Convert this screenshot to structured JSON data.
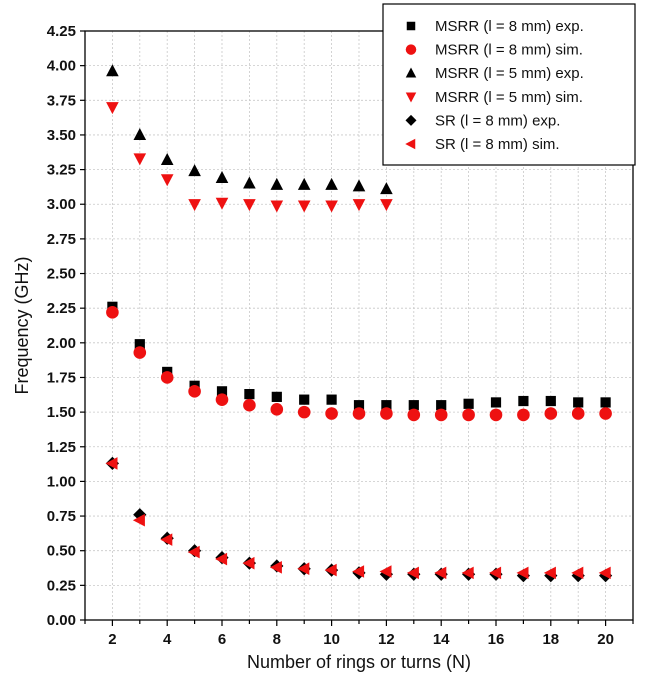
{
  "chart_data": {
    "type": "scatter",
    "xlabel": "Number of rings or turns (N)",
    "ylabel": "Frequency (GHz)",
    "xlim": [
      1,
      21
    ],
    "ylim": [
      0,
      4.25
    ],
    "xticks": [
      2,
      4,
      6,
      8,
      10,
      12,
      14,
      16,
      18,
      20
    ],
    "yticks": [
      0.0,
      0.25,
      0.5,
      0.75,
      1.0,
      1.25,
      1.5,
      1.75,
      2.0,
      2.25,
      2.5,
      2.75,
      3.0,
      3.25,
      3.5,
      3.75,
      4.0,
      4.25
    ],
    "grid": true,
    "legend_position": "top-right",
    "series": [
      {
        "name": "MSRR (l = 8 mm) exp.",
        "marker": "square",
        "color": "#000000",
        "x": [
          2,
          3,
          4,
          5,
          6,
          7,
          8,
          9,
          10,
          11,
          12,
          13,
          14,
          15,
          16,
          17,
          18,
          19,
          20
        ],
        "y": [
          2.26,
          1.99,
          1.79,
          1.69,
          1.65,
          1.63,
          1.61,
          1.59,
          1.59,
          1.55,
          1.55,
          1.55,
          1.55,
          1.56,
          1.57,
          1.58,
          1.58,
          1.57,
          1.57
        ]
      },
      {
        "name": "MSRR (l = 8 mm) sim.",
        "marker": "circle",
        "color": "#ee1111",
        "x": [
          2,
          3,
          4,
          5,
          6,
          7,
          8,
          9,
          10,
          11,
          12,
          13,
          14,
          15,
          16,
          17,
          18,
          19,
          20
        ],
        "y": [
          2.22,
          1.93,
          1.75,
          1.65,
          1.59,
          1.55,
          1.52,
          1.5,
          1.49,
          1.49,
          1.49,
          1.48,
          1.48,
          1.48,
          1.48,
          1.48,
          1.49,
          1.49,
          1.49
        ]
      },
      {
        "name": "MSRR (l = 5 mm) exp.",
        "marker": "triangle-up",
        "color": "#000000",
        "x": [
          2,
          3,
          4,
          5,
          6,
          7,
          8,
          9,
          10,
          11,
          12
        ],
        "y": [
          3.96,
          3.5,
          3.32,
          3.24,
          3.19,
          3.15,
          3.14,
          3.14,
          3.14,
          3.13,
          3.11
        ]
      },
      {
        "name": "MSRR (l = 5 mm) sim.",
        "marker": "triangle-down",
        "color": "#ee1111",
        "x": [
          2,
          3,
          4,
          5,
          6,
          7,
          8,
          9,
          10,
          11,
          12
        ],
        "y": [
          3.7,
          3.33,
          3.18,
          3.0,
          3.01,
          3.0,
          2.99,
          2.99,
          2.99,
          3.0,
          3.0
        ]
      },
      {
        "name": "SR (l = 8 mm) exp.",
        "marker": "diamond",
        "color": "#000000",
        "x": [
          2,
          3,
          4,
          5,
          6,
          7,
          8,
          9,
          10,
          11,
          12,
          13,
          14,
          15,
          16,
          17,
          18,
          19,
          20
        ],
        "y": [
          1.13,
          0.76,
          0.59,
          0.5,
          0.45,
          0.41,
          0.39,
          0.37,
          0.36,
          0.34,
          0.33,
          0.33,
          0.33,
          0.33,
          0.33,
          0.32,
          0.32,
          0.32,
          0.32
        ]
      },
      {
        "name": "SR (l = 8 mm) sim.",
        "marker": "triangle-left",
        "color": "#ee1111",
        "x": [
          2,
          3,
          4,
          5,
          6,
          7,
          8,
          9,
          10,
          11,
          12,
          13,
          14,
          15,
          16,
          17,
          18,
          19,
          20
        ],
        "y": [
          1.13,
          0.72,
          0.58,
          0.49,
          0.44,
          0.41,
          0.38,
          0.37,
          0.36,
          0.35,
          0.35,
          0.34,
          0.34,
          0.34,
          0.34,
          0.34,
          0.34,
          0.34,
          0.34
        ]
      }
    ]
  }
}
